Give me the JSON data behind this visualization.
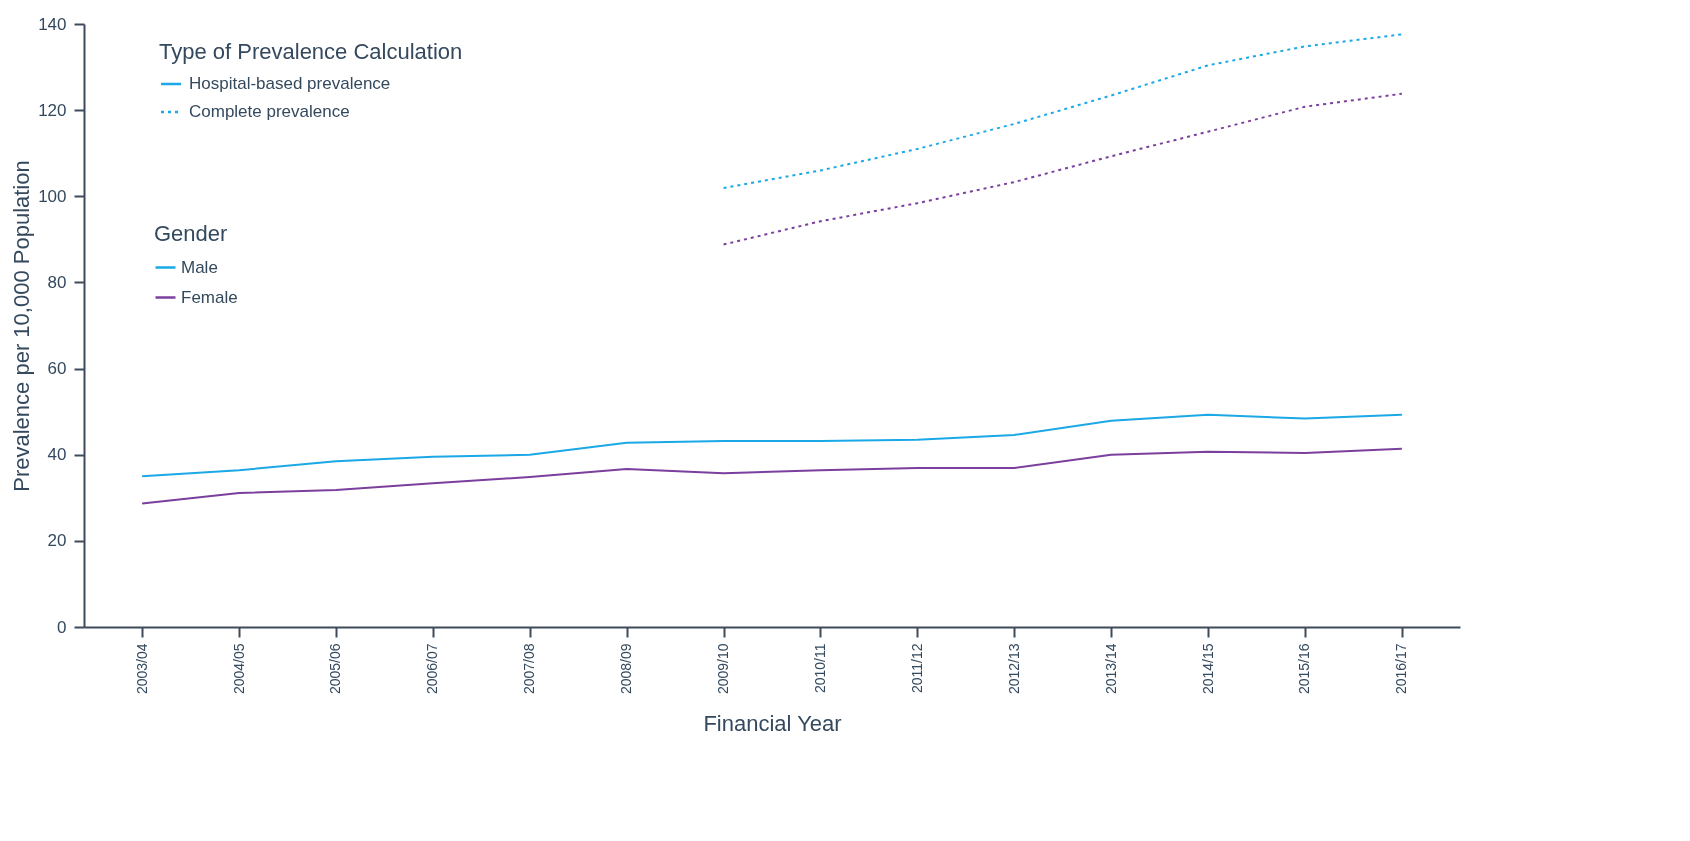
{
  "chart_data": {
    "type": "line",
    "xlabel": "Financial Year",
    "ylabel": "Prevalence per 10,000 Population",
    "categories": [
      "2003/04",
      "2004/05",
      "2005/06",
      "2006/07",
      "2007/08",
      "2008/09",
      "2009/10",
      "2010/11",
      "2011/12",
      "2012/13",
      "2013/14",
      "2014/15",
      "2015/16",
      "2016/17"
    ],
    "series": [
      {
        "name": "Male",
        "color": "#1ba8e6",
        "line_style": "solid",
        "values": [
          35.0,
          36.4,
          38.5,
          39.5,
          40.0,
          42.8,
          43.2,
          43.2,
          43.5,
          44.6,
          47.9,
          49.3,
          48.4,
          49.3
        ]
      },
      {
        "name": "Female",
        "color": "#7b3f9e",
        "line_style": "solid",
        "values": [
          28.7,
          31.1,
          31.8,
          33.4,
          34.8,
          36.7,
          35.7,
          36.4,
          36.9,
          36.9,
          40.0,
          40.7,
          40.4,
          41.4
        ]
      },
      {
        "color": "#1ba8e6",
        "line_style": "dotted",
        "values": [
          null,
          null,
          null,
          null,
          null,
          null,
          101.9,
          106.0,
          111.0,
          116.8,
          123.4,
          130.4,
          134.8,
          137.6
        ]
      },
      {
        "color": "#7b3f9e",
        "line_style": "dotted",
        "values": [
          null,
          null,
          null,
          null,
          null,
          null,
          88.8,
          94.2,
          98.4,
          103.3,
          109.3,
          115.0,
          120.8,
          123.8
        ]
      }
    ],
    "annotations": [
      "Type of Prevalence Calculation",
      "Hospital-based prevalence",
      "Complete prevalence"
    ],
    "legend_title": "Gender",
    "legend": "top left",
    "ylim": [
      0,
      140
    ],
    "yticks": [
      0,
      20,
      40,
      60,
      80,
      100,
      120,
      140
    ],
    "grid": false
  }
}
